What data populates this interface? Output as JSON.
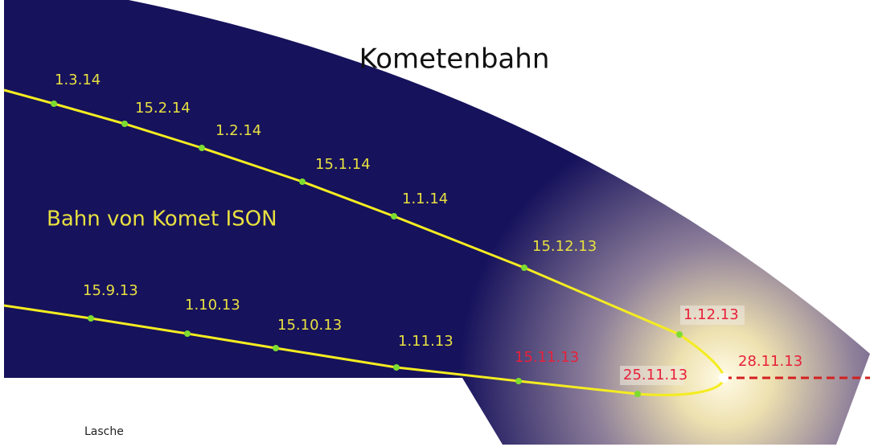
{
  "title": "Kometenbahn",
  "orbit_label": "Bahn von Komet ISON",
  "dates": [
    "1.3.14",
    "15.2.14",
    "1.2.14",
    "15.1.14",
    "1.1.14",
    "15.12.13",
    "1.12.13",
    "28.11.13",
    "25.11.13",
    "15.11.13",
    "1.11.13",
    "15.10.13",
    "1.10.13",
    "15.9.13"
  ],
  "tab_label": "Lasche"
}
